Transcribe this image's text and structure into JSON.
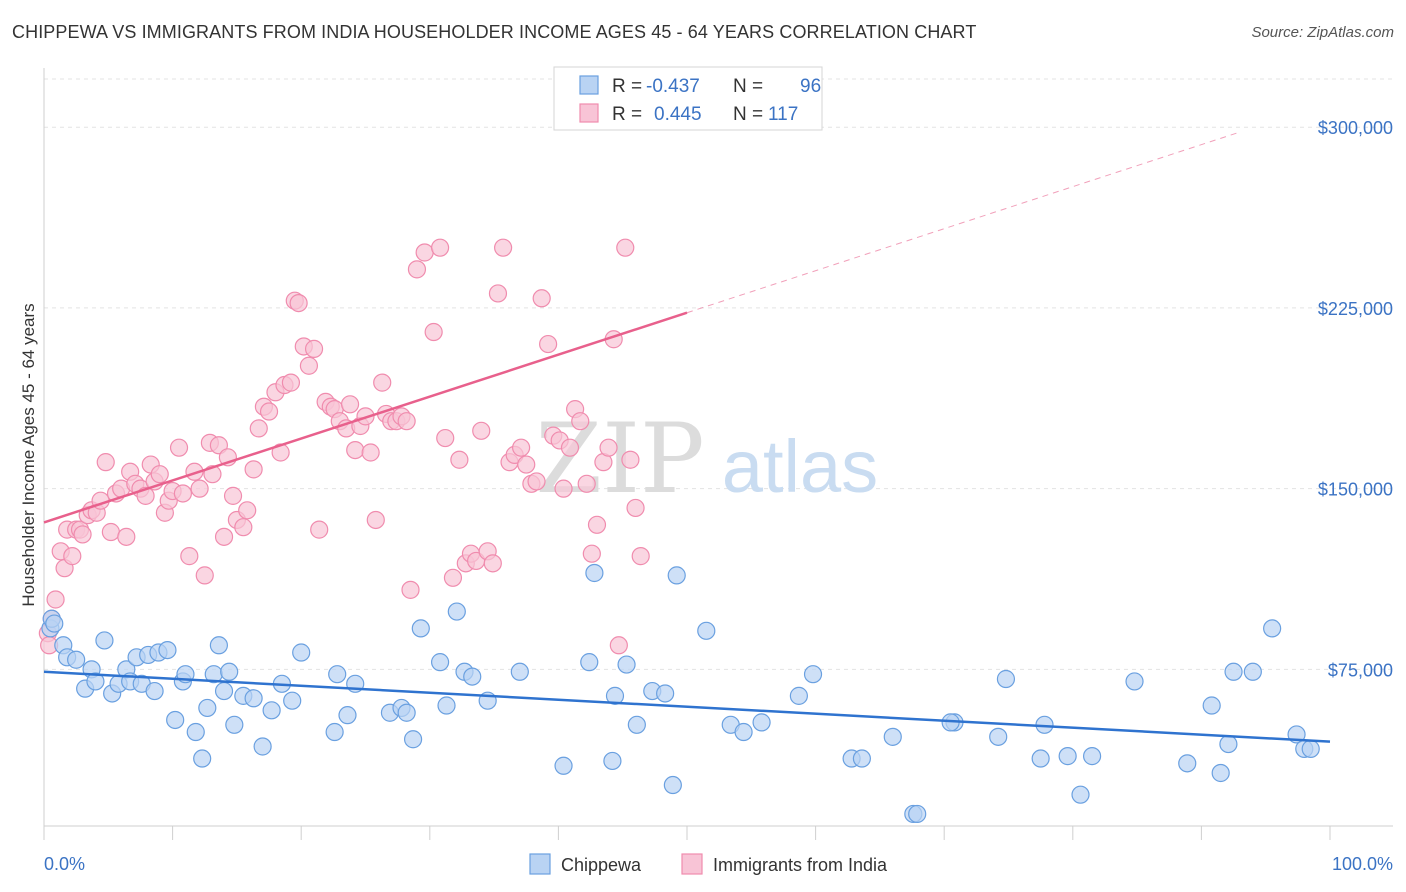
{
  "title": "CHIPPEWA VS IMMIGRANTS FROM INDIA HOUSEHOLDER INCOME AGES 45 - 64 YEARS CORRELATION CHART",
  "source": "Source: ZipAtlas.com",
  "watermark": {
    "zip": "ZIP",
    "atlas": "atlas"
  },
  "chart_data": {
    "type": "scatter",
    "ylabel": "Householder Income Ages 45 - 64 years",
    "xlim": [
      0,
      100
    ],
    "ylim": [
      10000,
      320000
    ],
    "x_tick_labels": {
      "left": "0.0%",
      "right": "100.0%"
    },
    "y_ticks": [
      {
        "value": 75000,
        "label": "$75,000"
      },
      {
        "value": 150000,
        "label": "$150,000"
      },
      {
        "value": 225000,
        "label": "$225,000"
      },
      {
        "value": 300000,
        "label": "$300,000"
      }
    ],
    "grid": true,
    "legend_top": [
      {
        "r_label": "R =",
        "r_value": "-0.437",
        "n_label": "N =",
        "n_value": "96"
      },
      {
        "r_label": "R =",
        "r_value": "0.445",
        "n_label": "N =",
        "n_value": "117"
      }
    ],
    "series": [
      {
        "name": "Chippewa",
        "color": "#6aa0e0",
        "fill": "#b9d3f3",
        "line_color": "#2f73cf",
        "trend": {
          "x0": 0,
          "y0": 74000,
          "x1": 100,
          "y1": 45000
        },
        "points": [
          [
            0.5,
            92000
          ],
          [
            0.6,
            96000
          ],
          [
            0.8,
            94000
          ],
          [
            1.5,
            85000
          ],
          [
            1.8,
            80000
          ],
          [
            2.5,
            79000
          ],
          [
            3.2,
            67000
          ],
          [
            3.7,
            75000
          ],
          [
            4,
            70000
          ],
          [
            4.7,
            87000
          ],
          [
            5.3,
            65000
          ],
          [
            5.8,
            69000
          ],
          [
            6.4,
            75000
          ],
          [
            6.7,
            70000
          ],
          [
            7.2,
            80000
          ],
          [
            7.6,
            69000
          ],
          [
            8.1,
            81000
          ],
          [
            8.6,
            66000
          ],
          [
            8.9,
            82000
          ],
          [
            9.6,
            83000
          ],
          [
            10.2,
            54000
          ],
          [
            10.8,
            70000
          ],
          [
            11,
            73000
          ],
          [
            11.8,
            49000
          ],
          [
            12.3,
            38000
          ],
          [
            12.7,
            59000
          ],
          [
            13.2,
            73000
          ],
          [
            13.6,
            85000
          ],
          [
            14,
            66000
          ],
          [
            14.4,
            74000
          ],
          [
            14.8,
            52000
          ],
          [
            15.5,
            64000
          ],
          [
            16.3,
            63000
          ],
          [
            17,
            43000
          ],
          [
            17.7,
            58000
          ],
          [
            18.5,
            69000
          ],
          [
            19.3,
            62000
          ],
          [
            20,
            82000
          ],
          [
            22.6,
            49000
          ],
          [
            22.8,
            73000
          ],
          [
            23.6,
            56000
          ],
          [
            24.2,
            69000
          ],
          [
            26.9,
            57000
          ],
          [
            27.8,
            59000
          ],
          [
            28.2,
            57000
          ],
          [
            28.7,
            46000
          ],
          [
            29.3,
            92000
          ],
          [
            30.8,
            78000
          ],
          [
            31.3,
            60000
          ],
          [
            32.1,
            99000
          ],
          [
            32.7,
            74000
          ],
          [
            33.3,
            72000
          ],
          [
            34.5,
            62000
          ],
          [
            37,
            74000
          ],
          [
            40.4,
            35000
          ],
          [
            42.8,
            115000
          ],
          [
            42.4,
            78000
          ],
          [
            44.2,
            37000
          ],
          [
            44.4,
            64000
          ],
          [
            45.3,
            77000
          ],
          [
            46.1,
            52000
          ],
          [
            47.3,
            66000
          ],
          [
            48.3,
            65000
          ],
          [
            48.9,
            27000
          ],
          [
            49.2,
            114000
          ],
          [
            51.5,
            91000
          ],
          [
            53.4,
            52000
          ],
          [
            54.4,
            49000
          ],
          [
            55.8,
            53000
          ],
          [
            58.7,
            64000
          ],
          [
            59.8,
            73000
          ],
          [
            62.8,
            38000
          ],
          [
            63.6,
            38000
          ],
          [
            66,
            47000
          ],
          [
            67.6,
            15000
          ],
          [
            67.9,
            15000
          ],
          [
            70.8,
            53000
          ],
          [
            70.5,
            53000
          ],
          [
            74.2,
            47000
          ],
          [
            74.8,
            71000
          ],
          [
            77.5,
            38000
          ],
          [
            77.8,
            52000
          ],
          [
            79.6,
            39000
          ],
          [
            80.6,
            23000
          ],
          [
            81.5,
            39000
          ],
          [
            84.8,
            70000
          ],
          [
            88.9,
            36000
          ],
          [
            90.8,
            60000
          ],
          [
            91.5,
            32000
          ],
          [
            92.1,
            44000
          ],
          [
            92.5,
            74000
          ],
          [
            94,
            74000
          ],
          [
            95.5,
            92000
          ],
          [
            97.4,
            48000
          ],
          [
            98,
            42000
          ],
          [
            98.5,
            42000
          ]
        ]
      },
      {
        "name": "Immigrants from India",
        "color": "#f08cae",
        "fill": "#f8c4d6",
        "line_color": "#e8608c",
        "trend": {
          "x0": 0,
          "y0": 136000,
          "x1": 50,
          "y1": 223000
        },
        "trend_dashed": {
          "x0": 50,
          "y0": 223000,
          "x1": 93,
          "y1": 298000
        },
        "points": [
          [
            0.3,
            90000
          ],
          [
            0.4,
            85000
          ],
          [
            0.6,
            96000
          ],
          [
            0.9,
            104000
          ],
          [
            1.3,
            124000
          ],
          [
            1.6,
            117000
          ],
          [
            1.8,
            133000
          ],
          [
            2.2,
            122000
          ],
          [
            2.5,
            133000
          ],
          [
            2.8,
            133000
          ],
          [
            3,
            131000
          ],
          [
            3.4,
            139000
          ],
          [
            3.7,
            141000
          ],
          [
            4.1,
            140000
          ],
          [
            4.4,
            145000
          ],
          [
            4.8,
            161000
          ],
          [
            5.2,
            132000
          ],
          [
            5.6,
            148000
          ],
          [
            6,
            150000
          ],
          [
            6.4,
            130000
          ],
          [
            6.7,
            157000
          ],
          [
            7.1,
            152000
          ],
          [
            7.5,
            150000
          ],
          [
            7.9,
            147000
          ],
          [
            8.3,
            160000
          ],
          [
            8.6,
            153000
          ],
          [
            9,
            156000
          ],
          [
            9.4,
            140000
          ],
          [
            9.7,
            145000
          ],
          [
            10,
            149000
          ],
          [
            10.5,
            167000
          ],
          [
            10.8,
            148000
          ],
          [
            11.3,
            122000
          ],
          [
            11.7,
            157000
          ],
          [
            12.1,
            150000
          ],
          [
            12.5,
            114000
          ],
          [
            12.9,
            169000
          ],
          [
            13.1,
            156000
          ],
          [
            13.6,
            168000
          ],
          [
            14,
            130000
          ],
          [
            14.3,
            163000
          ],
          [
            14.7,
            147000
          ],
          [
            15,
            137000
          ],
          [
            15.5,
            134000
          ],
          [
            15.8,
            141000
          ],
          [
            16.3,
            158000
          ],
          [
            16.7,
            175000
          ],
          [
            17.1,
            184000
          ],
          [
            17.5,
            182000
          ],
          [
            18,
            190000
          ],
          [
            18.4,
            165000
          ],
          [
            18.7,
            193000
          ],
          [
            19.2,
            194000
          ],
          [
            19.5,
            228000
          ],
          [
            19.8,
            227000
          ],
          [
            20.2,
            209000
          ],
          [
            20.6,
            201000
          ],
          [
            21,
            208000
          ],
          [
            21.4,
            133000
          ],
          [
            21.9,
            186000
          ],
          [
            22.3,
            184000
          ],
          [
            22.6,
            183000
          ],
          [
            23,
            178000
          ],
          [
            23.5,
            175000
          ],
          [
            23.8,
            185000
          ],
          [
            24.2,
            166000
          ],
          [
            24.6,
            176000
          ],
          [
            25,
            180000
          ],
          [
            25.4,
            165000
          ],
          [
            25.8,
            137000
          ],
          [
            26.3,
            194000
          ],
          [
            26.6,
            181000
          ],
          [
            27,
            178000
          ],
          [
            27.4,
            178000
          ],
          [
            27.8,
            180000
          ],
          [
            28.2,
            178000
          ],
          [
            28.5,
            108000
          ],
          [
            29,
            241000
          ],
          [
            29.6,
            248000
          ],
          [
            30.3,
            215000
          ],
          [
            30.8,
            250000
          ],
          [
            31.2,
            171000
          ],
          [
            31.8,
            113000
          ],
          [
            32.3,
            162000
          ],
          [
            32.8,
            119000
          ],
          [
            33.2,
            123000
          ],
          [
            33.6,
            120000
          ],
          [
            34,
            174000
          ],
          [
            34.5,
            124000
          ],
          [
            34.9,
            119000
          ],
          [
            35.3,
            231000
          ],
          [
            35.7,
            250000
          ],
          [
            36.2,
            161000
          ],
          [
            36.6,
            164000
          ],
          [
            37.1,
            167000
          ],
          [
            37.5,
            160000
          ],
          [
            37.9,
            152000
          ],
          [
            38.3,
            153000
          ],
          [
            38.7,
            229000
          ],
          [
            39.2,
            210000
          ],
          [
            39.6,
            172000
          ],
          [
            40.1,
            170000
          ],
          [
            40.4,
            150000
          ],
          [
            40.9,
            167000
          ],
          [
            41.3,
            183000
          ],
          [
            41.7,
            178000
          ],
          [
            42.2,
            152000
          ],
          [
            42.6,
            123000
          ],
          [
            43,
            135000
          ],
          [
            43.5,
            161000
          ],
          [
            43.9,
            167000
          ],
          [
            44.3,
            212000
          ],
          [
            44.7,
            85000
          ],
          [
            45.2,
            250000
          ],
          [
            45.6,
            162000
          ],
          [
            46,
            142000
          ],
          [
            46.4,
            122000
          ]
        ]
      }
    ]
  }
}
